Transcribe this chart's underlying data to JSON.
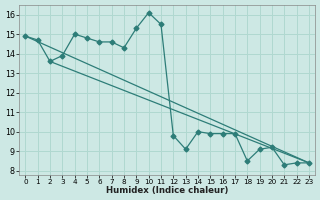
{
  "xlabel": "Humidex (Indice chaleur)",
  "bg_color": "#cde8e4",
  "line_color": "#2d7d78",
  "grid_color": "#b0d8d0",
  "xlim": [
    -0.5,
    23.5
  ],
  "ylim": [
    7.8,
    16.5
  ],
  "yticks": [
    8,
    9,
    10,
    11,
    12,
    13,
    14,
    15,
    16
  ],
  "xticks": [
    0,
    1,
    2,
    3,
    4,
    5,
    6,
    7,
    8,
    9,
    10,
    11,
    12,
    13,
    14,
    15,
    16,
    17,
    18,
    19,
    20,
    21,
    22,
    23
  ],
  "line1_x": [
    0,
    1,
    2,
    3,
    4,
    5,
    6,
    7,
    8,
    9,
    10,
    11,
    12,
    13,
    14,
    15,
    16,
    17,
    18,
    19,
    20,
    21,
    22,
    23
  ],
  "line1_y": [
    14.9,
    14.7,
    13.6,
    13.9,
    15.0,
    14.8,
    14.6,
    14.6,
    14.3,
    15.3,
    16.1,
    15.5,
    9.8,
    9.1,
    10.0,
    9.9,
    9.9,
    9.9,
    8.5,
    9.1,
    9.2,
    8.3,
    8.4,
    8.4
  ],
  "line2_x": [
    0,
    23
  ],
  "line2_y": [
    14.9,
    8.4
  ],
  "line3_x": [
    2,
    23
  ],
  "line3_y": [
    13.6,
    8.4
  ]
}
